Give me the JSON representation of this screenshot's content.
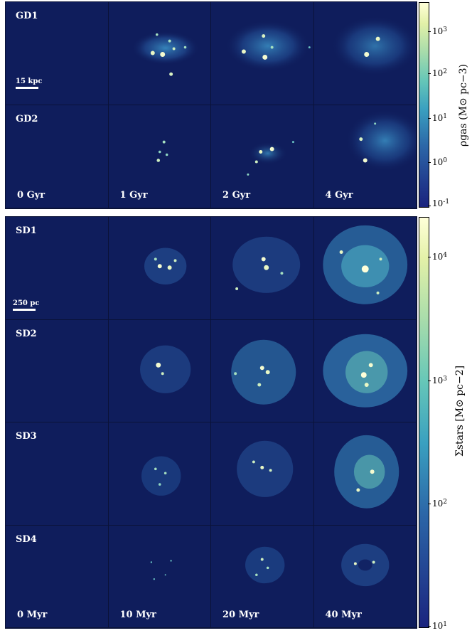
{
  "top_grid": {
    "rows": [
      "GD1",
      "GD2"
    ],
    "times": [
      "0 Gyr",
      "1 Gyr",
      "2 Gyr",
      "4 Gyr"
    ],
    "scale_label": "15 kpc",
    "colorbar": {
      "label": "ρgas (M⊙ pc−3)",
      "ticks": [
        {
          "base": "10",
          "exp": "3"
        },
        {
          "base": "10",
          "exp": "2"
        },
        {
          "base": "10",
          "exp": "1"
        },
        {
          "base": "10",
          "exp": "0"
        },
        {
          "base": "10",
          "exp": "-1"
        }
      ]
    }
  },
  "bottom_grid": {
    "rows": [
      "SD1",
      "SD2",
      "SD3",
      "SD4"
    ],
    "times": [
      "0 Myr",
      "10 Myr",
      "20 Myr",
      "40 Myr"
    ],
    "scale_label": "250 pc",
    "colorbar": {
      "label": "Σstars [M⊙ pc−2]",
      "ticks": [
        {
          "base": "10",
          "exp": "4"
        },
        {
          "base": "10",
          "exp": "3"
        },
        {
          "base": "10",
          "exp": "2"
        },
        {
          "base": "10",
          "exp": "1"
        }
      ]
    }
  },
  "colors": {
    "background": "#0f1d5c",
    "cmap_low": "#1a237e",
    "cmap_mid": "#3bb4c1",
    "cmap_high": "#ffffd9"
  }
}
